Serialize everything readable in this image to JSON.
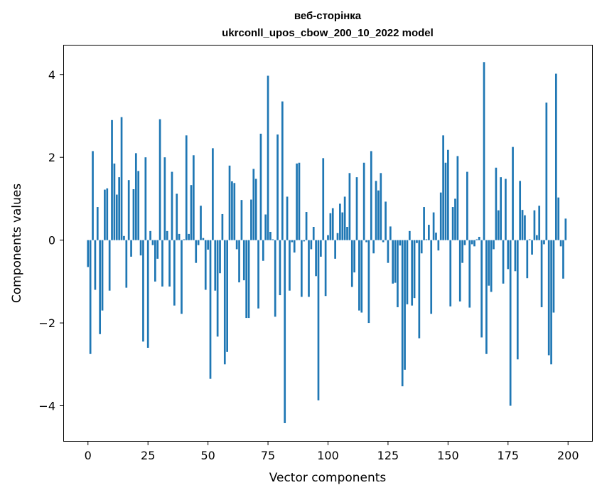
{
  "chart_data": {
    "type": "bar",
    "title_line1": "веб-сторінка",
    "title_line2": "ukrconll_upos_cbow_200_10_2022 model",
    "xlabel": "Vector components",
    "ylabel": "Components values",
    "xlim": [
      -10,
      210
    ],
    "ylim": [
      -4.85,
      4.7
    ],
    "xticks": [
      0,
      25,
      50,
      75,
      100,
      125,
      150,
      175,
      200
    ],
    "yticks": [
      -4,
      -2,
      0,
      2,
      4
    ],
    "ytick_labels": [
      "−4",
      "−2",
      "0",
      "2",
      "4"
    ],
    "grid": false,
    "bar_color": "#1f77b4",
    "x": [
      0,
      1,
      2,
      3,
      4,
      5,
      6,
      7,
      8,
      9,
      10,
      11,
      12,
      13,
      14,
      15,
      16,
      17,
      18,
      19,
      20,
      21,
      22,
      23,
      24,
      25,
      26,
      27,
      28,
      29,
      30,
      31,
      32,
      33,
      34,
      35,
      36,
      37,
      38,
      39,
      40,
      41,
      42,
      43,
      44,
      45,
      46,
      47,
      48,
      49,
      50,
      51,
      52,
      53,
      54,
      55,
      56,
      57,
      58,
      59,
      60,
      61,
      62,
      63,
      64,
      65,
      66,
      67,
      68,
      69,
      70,
      71,
      72,
      73,
      74,
      75,
      76,
      77,
      78,
      79,
      80,
      81,
      82,
      83,
      84,
      85,
      86,
      87,
      88,
      89,
      90,
      91,
      92,
      93,
      94,
      95,
      96,
      97,
      98,
      99,
      100,
      101,
      102,
      103,
      104,
      105,
      106,
      107,
      108,
      109,
      110,
      111,
      112,
      113,
      114,
      115,
      116,
      117,
      118,
      119,
      120,
      121,
      122,
      123,
      124,
      125,
      126,
      127,
      128,
      129,
      130,
      131,
      132,
      133,
      134,
      135,
      136,
      137,
      138,
      139,
      140,
      141,
      142,
      143,
      144,
      145,
      146,
      147,
      148,
      149,
      150,
      151,
      152,
      153,
      154,
      155,
      156,
      157,
      158,
      159,
      160,
      161,
      162,
      163,
      164,
      165,
      166,
      167,
      168,
      169,
      170,
      171,
      172,
      173,
      174,
      175,
      176,
      177,
      178,
      179,
      180,
      181,
      182,
      183,
      184,
      185,
      186,
      187,
      188,
      189,
      190,
      191,
      192,
      193,
      194,
      195,
      196,
      197,
      198,
      199
    ],
    "values": [
      -0.65,
      -2.75,
      2.15,
      -1.2,
      0.8,
      -2.27,
      -1.7,
      1.22,
      1.25,
      -1.22,
      2.9,
      1.85,
      1.1,
      1.52,
      2.97,
      0.1,
      -1.15,
      1.45,
      -0.4,
      1.23,
      2.1,
      1.67,
      -0.37,
      -2.45,
      2.0,
      -2.6,
      0.22,
      -0.12,
      -1.0,
      -0.45,
      2.92,
      -1.12,
      2.0,
      0.22,
      -1.12,
      1.65,
      -1.58,
      1.12,
      0.15,
      -1.78,
      0.02,
      2.53,
      0.15,
      1.33,
      2.05,
      -0.55,
      -0.12,
      0.83,
      0.05,
      -1.2,
      -0.23,
      -3.35,
      2.22,
      -1.22,
      -2.33,
      -0.8,
      0.63,
      -3.0,
      -2.7,
      1.8,
      1.42,
      1.38,
      -0.22,
      -1.02,
      0.97,
      -0.97,
      -1.88,
      -1.88,
      0.98,
      1.72,
      1.48,
      -1.65,
      2.57,
      -0.5,
      0.62,
      3.97,
      0.2,
      0.02,
      -1.85,
      2.55,
      -1.33,
      3.35,
      -4.42,
      1.05,
      -1.22,
      -0.05,
      -0.3,
      1.85,
      1.87,
      -1.37,
      -0.03,
      0.68,
      -1.37,
      -0.22,
      0.32,
      -0.87,
      -3.87,
      -0.4,
      1.98,
      -1.35,
      0.12,
      0.65,
      0.77,
      -0.45,
      0.17,
      0.88,
      0.67,
      1.05,
      0.32,
      1.62,
      -1.13,
      -0.78,
      1.52,
      -1.7,
      -1.75,
      1.87,
      -0.05,
      -2.0,
      2.15,
      -0.32,
      1.43,
      1.2,
      1.62,
      -0.05,
      0.93,
      -0.55,
      0.33,
      -1.05,
      -1.03,
      -1.62,
      -0.13,
      -3.53,
      -3.13,
      -1.55,
      0.22,
      -1.58,
      -1.4,
      -0.07,
      -2.37,
      -0.32,
      0.8,
      0.02,
      0.37,
      -1.78,
      0.67,
      0.18,
      -0.25,
      1.15,
      2.53,
      1.87,
      2.18,
      -1.6,
      0.8,
      1.0,
      2.03,
      -1.48,
      -0.55,
      -0.12,
      1.65,
      -1.63,
      -0.1,
      -0.15,
      0.02,
      0.08,
      -2.35,
      4.3,
      -2.75,
      -1.1,
      -1.25,
      -0.22,
      1.75,
      0.72,
      1.52,
      -1.05,
      1.48,
      -0.7,
      -4.0,
      2.25,
      -0.75,
      -2.88,
      1.43,
      0.73,
      0.6,
      -0.92,
      0.02,
      -0.35,
      0.72,
      0.12,
      0.83,
      -1.62,
      -0.1,
      3.32,
      -2.78,
      -3.0,
      -1.75,
      4.02,
      1.03,
      -0.15,
      -0.93,
      0.52
    ]
  }
}
